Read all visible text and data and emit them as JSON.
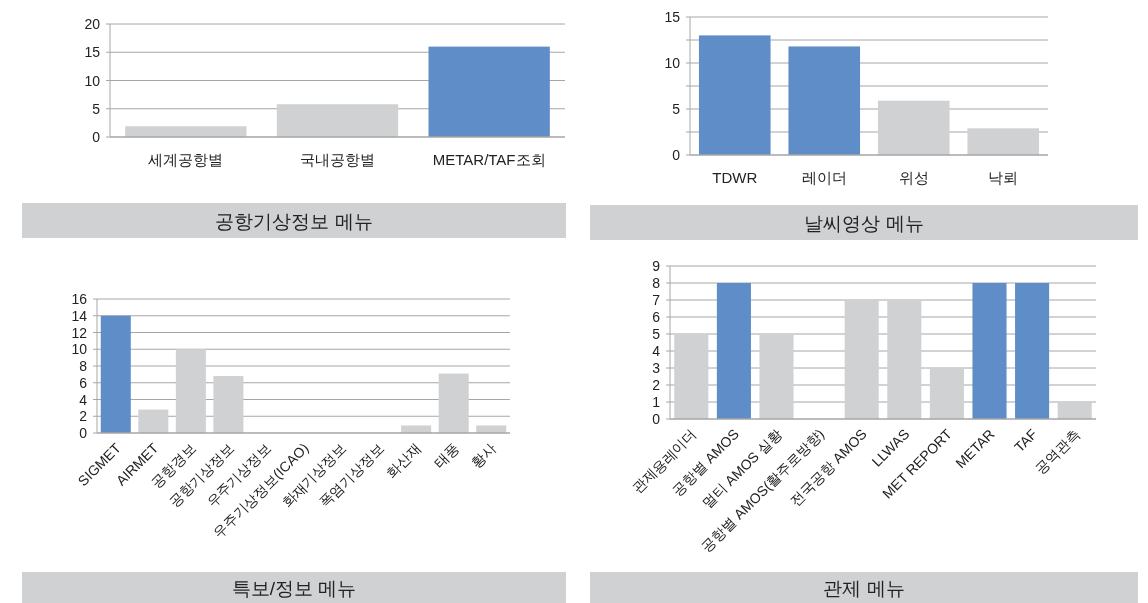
{
  "chart_data": [
    {
      "type": "bar",
      "title": "공항기상정보 메뉴",
      "categories": [
        "세계공항별",
        "국내공항별",
        "METAR/TAF조회"
      ],
      "values": [
        1.9,
        5.8,
        16
      ],
      "colors": [
        "#d0d1d3",
        "#d0d1d3",
        "#5f8dc8"
      ],
      "ylim": [
        0,
        20
      ],
      "yticks": [
        0,
        5,
        10,
        15,
        20
      ],
      "grid": "y"
    },
    {
      "type": "bar",
      "title": "날씨영상 메뉴",
      "categories": [
        "TDWR",
        "레이더",
        "위성",
        "낙뢰"
      ],
      "values": [
        13,
        11.8,
        5.9,
        2.9
      ],
      "colors": [
        "#5f8dc8",
        "#5f8dc8",
        "#d0d1d3",
        "#d0d1d3"
      ],
      "ylim": [
        0,
        15
      ],
      "yticks": [
        0,
        {
          "value": 2.5,
          "label": null
        },
        5,
        {
          "value": 7.5,
          "label": null
        },
        10,
        {
          "value": 12.5,
          "label": null
        },
        15
      ],
      "grid": "y"
    },
    {
      "type": "bar",
      "title": "특보/정보 메뉴",
      "categories": [
        "SIGMET",
        "AIRMET",
        "공항경보",
        "공항기상정보",
        "우주기상정보",
        "우주기상정보(ICAO)",
        "화재기상정보",
        "폭염기상정보",
        "화산재",
        "태풍",
        "황사"
      ],
      "values": [
        14,
        2.8,
        10,
        6.8,
        0,
        0,
        0,
        0,
        0.9,
        7.1,
        0.9
      ],
      "colors": [
        "#5f8dc8",
        "#d0d1d3",
        "#d0d1d3",
        "#d0d1d3",
        "#d0d1d3",
        "#d0d1d3",
        "#d0d1d3",
        "#d0d1d3",
        "#d0d1d3",
        "#d0d1d3",
        "#d0d1d3"
      ],
      "ylim": [
        0,
        16
      ],
      "yticks": [
        0,
        2,
        4,
        6,
        8,
        10,
        12,
        14,
        16
      ],
      "grid": "y"
    },
    {
      "type": "bar",
      "title": "관제 메뉴",
      "categories": [
        "관제용레이더",
        "공항별 AMOS",
        "멀티 AMOS 실황",
        "공항별 AMOS(활주로방향)",
        "전국공항 AMOS",
        "LLWAS",
        "MET REPORT",
        "METAR",
        "TAF",
        "공역관측"
      ],
      "values": [
        5,
        8,
        5,
        0,
        7,
        7,
        3,
        8,
        8,
        1
      ],
      "colors": [
        "#d0d1d3",
        "#5f8dc8",
        "#d0d1d3",
        "#d0d1d3",
        "#d0d1d3",
        "#d0d1d3",
        "#d0d1d3",
        "#5f8dc8",
        "#5f8dc8",
        "#d0d1d3"
      ],
      "ylim": [
        0,
        9
      ],
      "yticks": [
        0,
        1,
        2,
        3,
        4,
        5,
        6,
        7,
        8,
        9
      ],
      "grid": "y"
    }
  ]
}
